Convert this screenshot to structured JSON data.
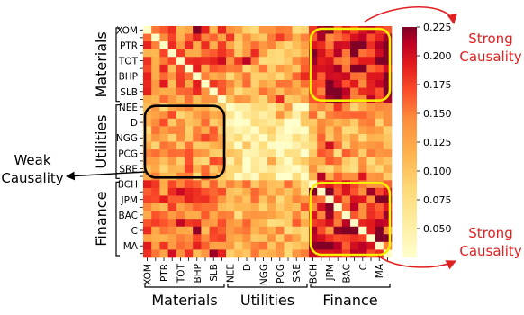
{
  "chart_data": {
    "type": "heatmap",
    "row_labels": [
      "XOM",
      "",
      "PTR",
      "",
      "TOT",
      "",
      "BHP",
      "",
      "SLB",
      "",
      "NEE",
      "",
      "D",
      "",
      "NGG",
      "",
      "PCG",
      "",
      "SRE",
      "",
      "BCH",
      "",
      "JPM",
      "",
      "BAC",
      "",
      "C",
      "",
      "MA",
      ""
    ],
    "col_labels": [
      "XOM",
      "",
      "PTR",
      "",
      "TOT",
      "",
      "BHP",
      "",
      "SLB",
      "",
      "NEE",
      "",
      "D",
      "",
      "NGG",
      "",
      "PCG",
      "",
      "SRE",
      "",
      "BCH",
      "",
      "JPM",
      "",
      "BAC",
      "",
      "C",
      "",
      "MA",
      ""
    ],
    "groups": [
      {
        "name": "Materials",
        "start": 0,
        "end": 10
      },
      {
        "name": "Utilities",
        "start": 10,
        "end": 20
      },
      {
        "name": "Finance",
        "start": 20,
        "end": 30
      }
    ],
    "colorbar": {
      "min": 0.025,
      "max": 0.225,
      "ticks": [
        0.05,
        0.075,
        0.1,
        0.125,
        0.15,
        0.175,
        0.2,
        0.225
      ],
      "tick_labels": [
        "0.050",
        "0.075",
        "0.100",
        "0.125",
        "0.150",
        "0.175",
        "0.200",
        "0.225"
      ],
      "colormap": "YlOrRd"
    },
    "block_levels": [
      [
        0.15,
        0.12,
        0.19
      ],
      [
        0.13,
        0.06,
        0.12
      ],
      [
        0.15,
        0.12,
        0.18
      ]
    ],
    "highlight_boxes": [
      {
        "rows": [
          0,
          10
        ],
        "cols": [
          20,
          30
        ],
        "color": "#f5ef00"
      },
      {
        "rows": [
          10,
          20
        ],
        "cols": [
          0,
          10
        ],
        "color": "#000000"
      },
      {
        "rows": [
          20,
          30
        ],
        "cols": [
          20,
          30
        ],
        "color": "#f5ef00"
      }
    ]
  },
  "annotations": {
    "strong_top": [
      "Strong",
      "Causality"
    ],
    "strong_bottom": [
      "Strong",
      "Causality"
    ],
    "weak": [
      "Weak",
      "Causality"
    ]
  },
  "colors": {
    "strong_text": "#e02020",
    "arrow_red": "#e02020",
    "arrow_black": "#000000"
  }
}
